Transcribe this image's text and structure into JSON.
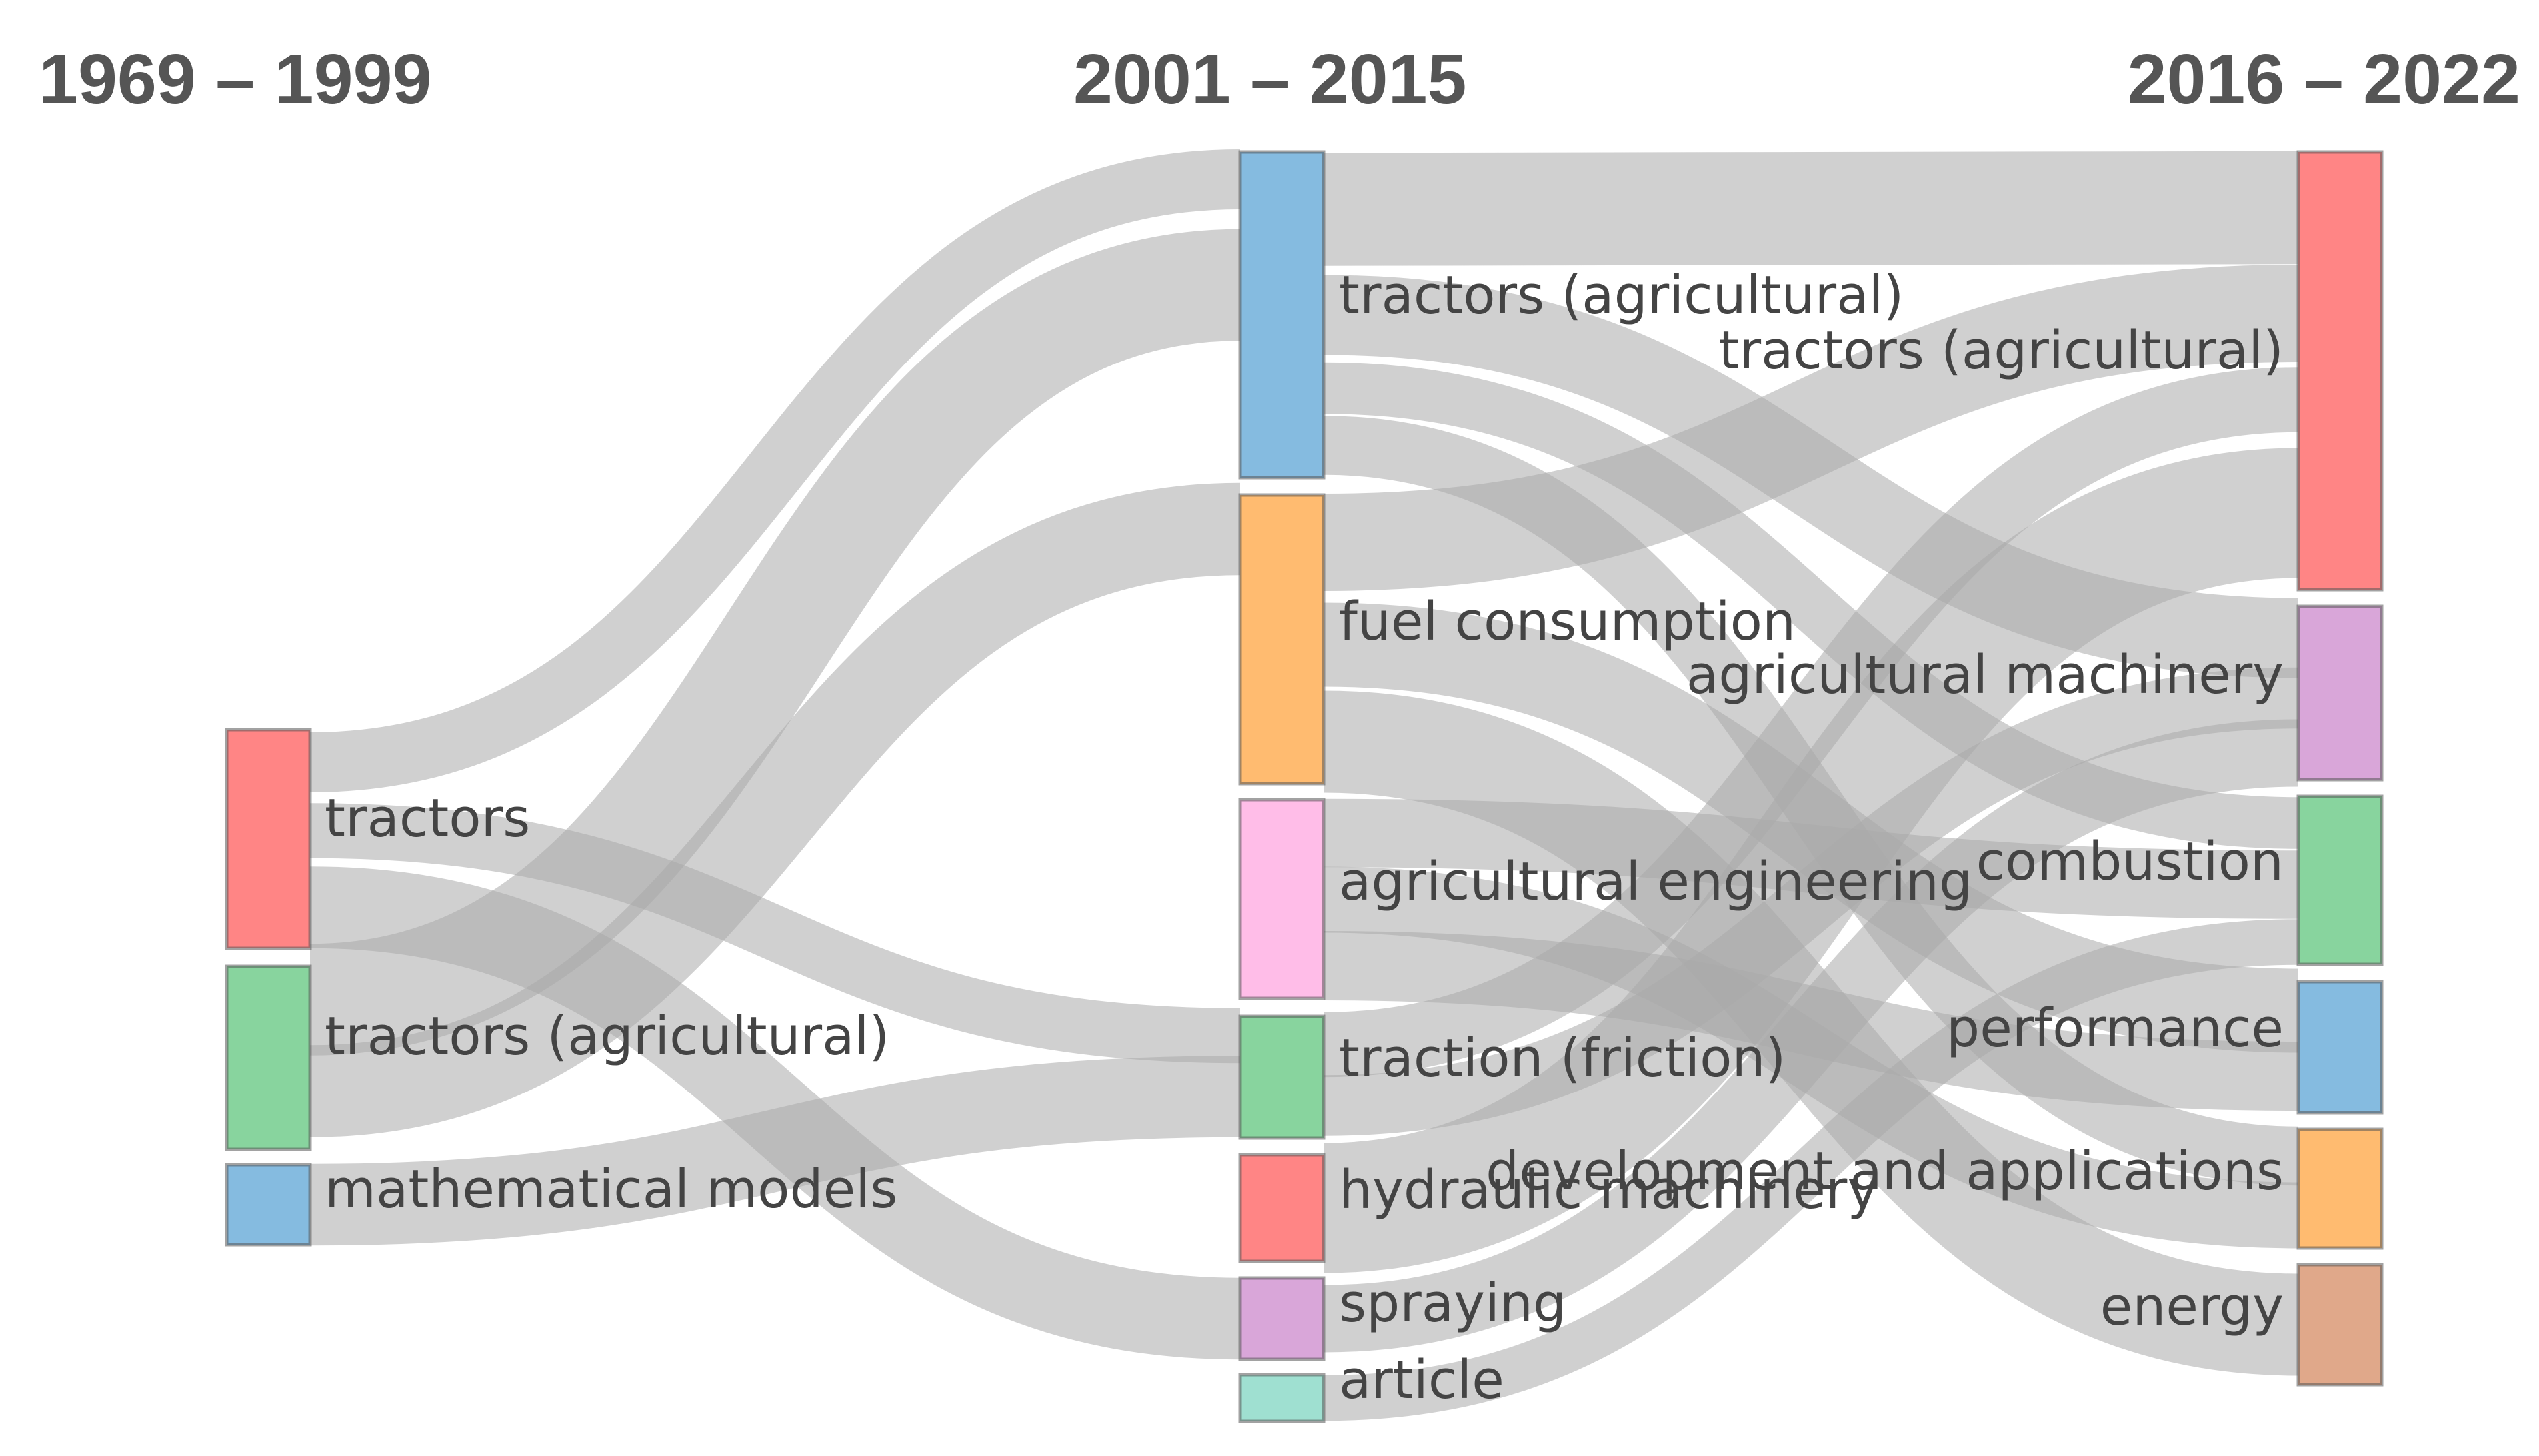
{
  "periods": [
    "1969 – 1999",
    "2001 – 2015",
    "2016 – 2022"
  ],
  "columns": [
    {
      "nodes": [
        {
          "label": "tractors",
          "color": "#ff8585"
        },
        {
          "label": "tractors (agricultural)",
          "color": "#88d49e"
        },
        {
          "label": "mathematical models",
          "color": "#85bbe0"
        }
      ]
    },
    {
      "nodes": [
        {
          "label": "tractors (agricultural)",
          "color": "#85bbe0"
        },
        {
          "label": "fuel consumption",
          "color": "#ffbb70"
        },
        {
          "label": "agricultural engineering",
          "color": "#ffbde8"
        },
        {
          "label": "traction (friction)",
          "color": "#88d49e"
        },
        {
          "label": "hydraulic machinery",
          "color": "#ff8585"
        },
        {
          "label": "spraying",
          "color": "#d9a6d9"
        },
        {
          "label": "article",
          "color": "#9fe0d1"
        }
      ]
    },
    {
      "nodes": [
        {
          "label": "tractors (agricultural)",
          "color": "#ff8585"
        },
        {
          "label": "agricultural machinery",
          "color": "#d9a6d9"
        },
        {
          "label": "combustion",
          "color": "#88d49e"
        },
        {
          "label": "performance",
          "color": "#85bbe0"
        },
        {
          "label": "development and applications",
          "color": "#ffbb70"
        },
        {
          "label": "energy",
          "color": "#e0a88a"
        }
      ]
    }
  ]
}
